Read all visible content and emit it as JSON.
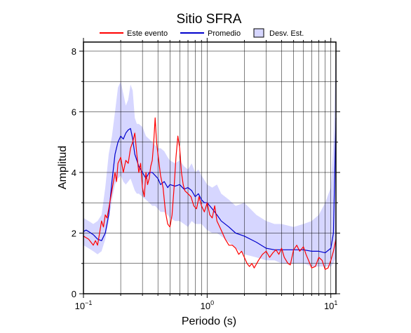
{
  "chart_data": {
    "type": "line",
    "title": "Sitio SFRA",
    "xlabel": "Periodo (s)",
    "ylabel": "Amplitud",
    "xscale": "log",
    "xlim": [
      0.1,
      11
    ],
    "ylim": [
      0,
      8.3
    ],
    "grid": true,
    "legend_position": "top",
    "xticks": [
      {
        "value": 0.1,
        "base": "10",
        "exp": "−1"
      },
      {
        "value": 1,
        "base": "10",
        "exp": "0"
      },
      {
        "value": 10,
        "base": "10",
        "exp": "1"
      }
    ],
    "yticks": [
      {
        "value": 0,
        "label": "0"
      },
      {
        "value": 2,
        "label": "2"
      },
      {
        "value": 4,
        "label": "4"
      },
      {
        "value": 6,
        "label": "6"
      },
      {
        "value": 8,
        "label": "8"
      }
    ],
    "legend": [
      {
        "label": "Este evento",
        "kind": "line",
        "color": "#ff0000"
      },
      {
        "label": "Promedio",
        "kind": "line",
        "color": "#0000cc"
      },
      {
        "label": "Desv. Est.",
        "kind": "patch",
        "color": "#d6d6ff"
      }
    ],
    "band": {
      "name": "Desv. Est.",
      "color": "#d6d6ff",
      "x": [
        0.1,
        0.11,
        0.12,
        0.13,
        0.14,
        0.15,
        0.16,
        0.17,
        0.18,
        0.19,
        0.2,
        0.21,
        0.22,
        0.23,
        0.24,
        0.25,
        0.26,
        0.27,
        0.28,
        0.3,
        0.32,
        0.34,
        0.36,
        0.38,
        0.4,
        0.42,
        0.45,
        0.48,
        0.5,
        0.55,
        0.6,
        0.65,
        0.7,
        0.75,
        0.8,
        0.85,
        0.9,
        1.0,
        1.1,
        1.2,
        1.3,
        1.5,
        1.7,
        2.0,
        2.5,
        3.0,
        3.5,
        4.0,
        5.0,
        6.0,
        7.0,
        8.0,
        9.0,
        10.0,
        10.5,
        11.0
      ],
      "upper": [
        2.5,
        2.4,
        2.3,
        2.4,
        2.6,
        3.5,
        4.6,
        5.2,
        6.0,
        6.8,
        7.0,
        6.6,
        6.2,
        6.4,
        6.9,
        6.7,
        5.8,
        5.6,
        5.6,
        5.5,
        5.2,
        5.1,
        5.0,
        4.9,
        4.8,
        4.8,
        4.7,
        4.5,
        4.4,
        4.3,
        4.4,
        4.2,
        4.1,
        4.3,
        4.0,
        4.1,
        3.9,
        3.6,
        3.5,
        3.6,
        3.3,
        3.1,
        2.9,
        3.0,
        2.6,
        2.4,
        2.3,
        2.3,
        2.2,
        2.3,
        2.4,
        2.6,
        3.0,
        3.5,
        5.0,
        8.3
      ],
      "lower": [
        1.6,
        1.5,
        1.4,
        1.3,
        1.4,
        1.8,
        2.4,
        3.1,
        3.6,
        3.8,
        3.9,
        3.7,
        3.6,
        3.7,
        3.8,
        3.6,
        3.4,
        3.3,
        3.3,
        3.2,
        3.1,
        3.0,
        2.9,
        2.9,
        2.8,
        2.7,
        2.7,
        2.6,
        2.5,
        2.4,
        2.4,
        2.3,
        2.2,
        2.4,
        2.3,
        2.3,
        2.3,
        2.1,
        2.0,
        2.0,
        1.9,
        1.7,
        1.5,
        1.3,
        1.2,
        1.1,
        1.1,
        1.0,
        1.0,
        1.0,
        0.9,
        0.9,
        0.9,
        0.9,
        1.0,
        1.2
      ]
    },
    "series": [
      {
        "name": "Promedio",
        "color": "#0000cc",
        "x": [
          0.1,
          0.105,
          0.11,
          0.12,
          0.13,
          0.14,
          0.15,
          0.16,
          0.17,
          0.18,
          0.19,
          0.2,
          0.21,
          0.22,
          0.23,
          0.24,
          0.25,
          0.26,
          0.27,
          0.28,
          0.3,
          0.32,
          0.34,
          0.36,
          0.38,
          0.4,
          0.42,
          0.45,
          0.48,
          0.5,
          0.55,
          0.6,
          0.65,
          0.7,
          0.75,
          0.8,
          0.85,
          0.9,
          0.95,
          1.0,
          1.1,
          1.2,
          1.3,
          1.5,
          1.7,
          2.0,
          2.5,
          3.0,
          3.5,
          4.0,
          5.0,
          6.0,
          7.0,
          8.0,
          9.0,
          10.0,
          10.5,
          11.0
        ],
        "y": [
          2.05,
          2.1,
          2.05,
          1.95,
          1.8,
          1.75,
          2.0,
          2.6,
          3.7,
          4.6,
          5.0,
          5.2,
          5.1,
          5.3,
          5.4,
          5.45,
          5.1,
          4.6,
          4.4,
          4.2,
          4.0,
          3.8,
          4.0,
          4.0,
          3.9,
          3.8,
          3.6,
          3.7,
          3.5,
          3.6,
          3.55,
          3.6,
          3.45,
          3.5,
          3.4,
          3.2,
          3.3,
          3.1,
          3.0,
          3.0,
          2.8,
          2.6,
          2.4,
          2.2,
          2.0,
          1.9,
          1.7,
          1.5,
          1.45,
          1.45,
          1.45,
          1.45,
          1.4,
          1.4,
          1.35,
          1.5,
          2.0,
          5.8
        ]
      },
      {
        "name": "Este evento",
        "color": "#ff0000",
        "x": [
          0.1,
          0.105,
          0.11,
          0.115,
          0.12,
          0.125,
          0.13,
          0.135,
          0.14,
          0.145,
          0.15,
          0.155,
          0.16,
          0.17,
          0.18,
          0.185,
          0.19,
          0.2,
          0.21,
          0.22,
          0.23,
          0.24,
          0.25,
          0.26,
          0.27,
          0.28,
          0.29,
          0.3,
          0.31,
          0.32,
          0.33,
          0.34,
          0.35,
          0.36,
          0.37,
          0.38,
          0.39,
          0.4,
          0.42,
          0.44,
          0.46,
          0.48,
          0.5,
          0.52,
          0.54,
          0.56,
          0.58,
          0.6,
          0.62,
          0.64,
          0.66,
          0.7,
          0.74,
          0.78,
          0.82,
          0.86,
          0.9,
          0.95,
          1.0,
          1.05,
          1.1,
          1.15,
          1.2,
          1.3,
          1.4,
          1.5,
          1.6,
          1.7,
          1.8,
          1.9,
          2.0,
          2.1,
          2.2,
          2.3,
          2.4,
          2.6,
          2.8,
          3.0,
          3.2,
          3.4,
          3.6,
          3.8,
          4.0,
          4.2,
          4.5,
          4.7,
          5.0,
          5.3,
          5.6,
          6.0,
          6.3,
          6.6,
          7.0,
          7.5,
          8.0,
          8.5,
          9.0,
          9.5,
          10.0,
          10.5,
          11.0
        ],
        "y": [
          1.9,
          1.85,
          1.8,
          1.7,
          1.6,
          1.75,
          1.6,
          2.0,
          2.4,
          2.2,
          2.6,
          2.5,
          2.8,
          3.4,
          4.0,
          3.7,
          4.3,
          4.5,
          4.0,
          4.4,
          4.3,
          4.8,
          5.0,
          5.3,
          4.6,
          4.0,
          4.3,
          3.5,
          3.2,
          4.0,
          3.6,
          3.8,
          4.2,
          4.4,
          5.0,
          5.8,
          5.0,
          4.6,
          3.9,
          3.5,
          2.7,
          2.3,
          2.2,
          2.6,
          3.5,
          4.5,
          5.2,
          4.8,
          4.0,
          3.6,
          3.4,
          3.3,
          3.2,
          2.9,
          2.8,
          3.2,
          2.9,
          2.7,
          3.0,
          2.6,
          2.5,
          2.9,
          2.4,
          2.1,
          1.8,
          1.6,
          1.6,
          1.5,
          1.3,
          1.4,
          1.2,
          1.0,
          0.9,
          1.0,
          0.85,
          1.1,
          1.3,
          1.4,
          1.2,
          1.35,
          1.45,
          1.3,
          1.5,
          1.2,
          1.0,
          0.95,
          1.45,
          1.6,
          1.4,
          1.55,
          1.3,
          1.1,
          0.85,
          0.9,
          1.2,
          1.1,
          0.8,
          0.85,
          1.1,
          1.4,
          1.8
        ]
      }
    ]
  }
}
